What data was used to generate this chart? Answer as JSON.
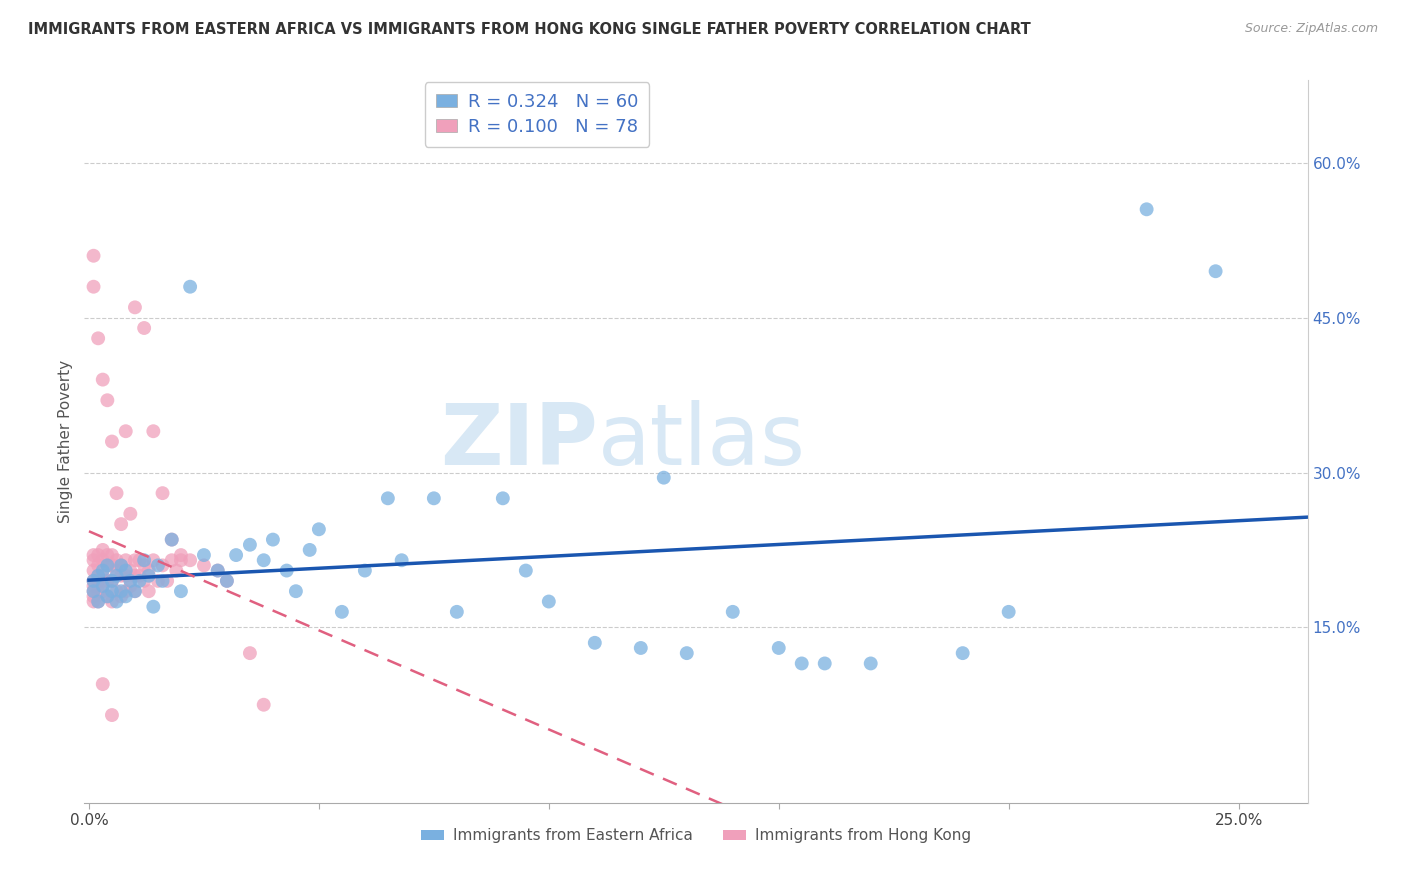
{
  "title": "IMMIGRANTS FROM EASTERN AFRICA VS IMMIGRANTS FROM HONG KONG SINGLE FATHER POVERTY CORRELATION CHART",
  "source": "Source: ZipAtlas.com",
  "ylabel": "Single Father Poverty",
  "y_ticks_right": [
    0.15,
    0.3,
    0.45,
    0.6
  ],
  "y_tick_labels_right": [
    "15.0%",
    "30.0%",
    "45.0%",
    "60.0%"
  ],
  "xlim": [
    -0.001,
    0.265
  ],
  "ylim": [
    -0.02,
    0.68
  ],
  "legend_r_blue": "R = 0.324",
  "legend_n_blue": "N = 60",
  "legend_r_pink": "R = 0.100",
  "legend_n_pink": "N = 78",
  "color_blue": "#7ab0e0",
  "color_pink": "#f0a0bb",
  "color_line_blue": "#1a56b0",
  "color_line_pink": "#e06080",
  "color_grid": "#cccccc",
  "watermark_zip": "ZIP",
  "watermark_atlas": "atlas",
  "legend_label_blue": "Immigrants from Eastern Africa",
  "legend_label_pink": "Immigrants from Hong Kong",
  "blue_x": [
    0.001,
    0.001,
    0.002,
    0.002,
    0.003,
    0.003,
    0.004,
    0.004,
    0.005,
    0.005,
    0.006,
    0.006,
    0.007,
    0.007,
    0.008,
    0.008,
    0.009,
    0.01,
    0.011,
    0.012,
    0.013,
    0.014,
    0.015,
    0.016,
    0.018,
    0.02,
    0.022,
    0.025,
    0.028,
    0.03,
    0.032,
    0.035,
    0.038,
    0.04,
    0.043,
    0.045,
    0.048,
    0.05,
    0.055,
    0.06,
    0.065,
    0.068,
    0.075,
    0.08,
    0.09,
    0.095,
    0.1,
    0.11,
    0.12,
    0.125,
    0.13,
    0.14,
    0.15,
    0.155,
    0.16,
    0.17,
    0.19,
    0.2,
    0.23,
    0.245
  ],
  "blue_y": [
    0.195,
    0.185,
    0.2,
    0.175,
    0.205,
    0.19,
    0.18,
    0.21,
    0.195,
    0.185,
    0.2,
    0.175,
    0.21,
    0.185,
    0.205,
    0.18,
    0.195,
    0.185,
    0.195,
    0.215,
    0.2,
    0.17,
    0.21,
    0.195,
    0.235,
    0.185,
    0.48,
    0.22,
    0.205,
    0.195,
    0.22,
    0.23,
    0.215,
    0.235,
    0.205,
    0.185,
    0.225,
    0.245,
    0.165,
    0.205,
    0.275,
    0.215,
    0.275,
    0.165,
    0.275,
    0.205,
    0.175,
    0.135,
    0.13,
    0.295,
    0.125,
    0.165,
    0.13,
    0.115,
    0.115,
    0.115,
    0.125,
    0.165,
    0.555,
    0.495
  ],
  "pink_x": [
    0.001,
    0.001,
    0.001,
    0.001,
    0.001,
    0.001,
    0.001,
    0.001,
    0.002,
    0.002,
    0.002,
    0.002,
    0.002,
    0.002,
    0.003,
    0.003,
    0.003,
    0.003,
    0.003,
    0.004,
    0.004,
    0.004,
    0.004,
    0.005,
    0.005,
    0.005,
    0.005,
    0.006,
    0.006,
    0.006,
    0.007,
    0.007,
    0.007,
    0.008,
    0.008,
    0.008,
    0.009,
    0.009,
    0.01,
    0.01,
    0.01,
    0.011,
    0.011,
    0.012,
    0.012,
    0.013,
    0.013,
    0.014,
    0.015,
    0.016,
    0.017,
    0.018,
    0.019,
    0.02,
    0.022,
    0.025,
    0.028,
    0.03,
    0.035,
    0.038,
    0.001,
    0.001,
    0.002,
    0.003,
    0.004,
    0.005,
    0.006,
    0.007,
    0.008,
    0.009,
    0.01,
    0.012,
    0.014,
    0.016,
    0.018,
    0.02,
    0.003,
    0.005
  ],
  "pink_y": [
    0.195,
    0.185,
    0.175,
    0.205,
    0.215,
    0.22,
    0.19,
    0.18,
    0.185,
    0.2,
    0.21,
    0.195,
    0.175,
    0.22,
    0.185,
    0.2,
    0.215,
    0.195,
    0.225,
    0.18,
    0.195,
    0.21,
    0.22,
    0.175,
    0.195,
    0.21,
    0.22,
    0.185,
    0.205,
    0.215,
    0.18,
    0.2,
    0.21,
    0.185,
    0.2,
    0.215,
    0.19,
    0.205,
    0.185,
    0.2,
    0.215,
    0.2,
    0.215,
    0.195,
    0.21,
    0.185,
    0.205,
    0.215,
    0.195,
    0.21,
    0.195,
    0.215,
    0.205,
    0.22,
    0.215,
    0.21,
    0.205,
    0.195,
    0.125,
    0.075,
    0.51,
    0.48,
    0.43,
    0.39,
    0.37,
    0.33,
    0.28,
    0.25,
    0.34,
    0.26,
    0.46,
    0.44,
    0.34,
    0.28,
    0.235,
    0.215,
    0.095,
    0.065
  ]
}
